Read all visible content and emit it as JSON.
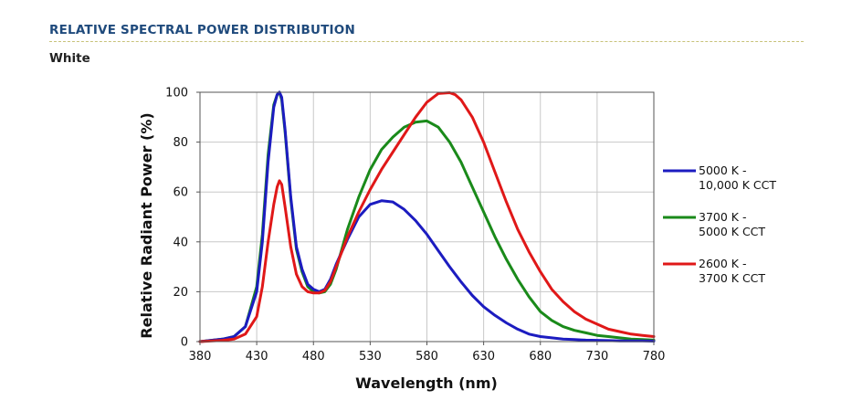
{
  "header": {
    "title": "RELATIVE SPECTRAL POWER DISTRIBUTION",
    "subtitle": "White"
  },
  "chart_data": {
    "type": "line",
    "title": "",
    "xlabel": "Wavelength (nm)",
    "ylabel": "Relative Radiant Power (%)",
    "xlim": [
      380,
      780
    ],
    "ylim": [
      0,
      100
    ],
    "x_ticks": [
      380,
      430,
      480,
      530,
      580,
      630,
      680,
      730,
      780
    ],
    "y_ticks": [
      0,
      20,
      40,
      60,
      80,
      100
    ],
    "grid": true,
    "legend_position": "right",
    "x": [
      380,
      400,
      410,
      420,
      430,
      435,
      440,
      445,
      448,
      450,
      452,
      455,
      460,
      465,
      470,
      475,
      480,
      485,
      490,
      495,
      500,
      510,
      520,
      530,
      540,
      550,
      560,
      570,
      580,
      590,
      600,
      605,
      610,
      620,
      630,
      640,
      650,
      660,
      670,
      680,
      690,
      700,
      710,
      720,
      730,
      740,
      750,
      760,
      770,
      780
    ],
    "series": [
      {
        "name_lines": [
          "5000 K -",
          "10,000 K CCT"
        ],
        "color": "#1c1cc0",
        "values": [
          0,
          1,
          2,
          6,
          20,
          40,
          72,
          94,
          99,
          100,
          98,
          85,
          58,
          38,
          29,
          23,
          21,
          20,
          21,
          25,
          31,
          41,
          50,
          55,
          56.5,
          56,
          53,
          48.5,
          43,
          36.5,
          30,
          27,
          24,
          18.5,
          14,
          10.5,
          7.5,
          5,
          3,
          2,
          1.5,
          1,
          0.8,
          0.6,
          0.5,
          0.4,
          0.3,
          0.3,
          0.3,
          0.2
        ]
      },
      {
        "name_lines": [
          "3700 K -",
          "5000 K CCT"
        ],
        "color": "#1a8a1a",
        "values": [
          0,
          1,
          2,
          6,
          22,
          43,
          75,
          95,
          99,
          100,
          97,
          84,
          57,
          37,
          28,
          22,
          20,
          19.5,
          20,
          23,
          29,
          45,
          58,
          69,
          77,
          82,
          86,
          88,
          88.5,
          86,
          80,
          76,
          72,
          62,
          52,
          42,
          33,
          25,
          18,
          12,
          8.5,
          6,
          4.5,
          3.5,
          2.5,
          2,
          1.5,
          1,
          0.8,
          0.6
        ]
      },
      {
        "name_lines": [
          "2600 K -",
          "3700 K CCT"
        ],
        "color": "#e01818",
        "values": [
          0,
          0.5,
          1,
          3,
          10,
          22,
          40,
          55,
          62,
          64.5,
          63,
          54,
          38,
          27,
          22,
          20,
          19.5,
          19.5,
          20.5,
          24,
          30,
          42,
          52,
          61,
          69,
          76,
          83,
          90,
          96,
          99.5,
          99.8,
          99,
          97,
          90,
          80,
          68,
          56,
          45,
          36,
          28,
          21,
          16,
          12,
          9,
          7,
          5,
          4,
          3,
          2.5,
          2
        ]
      }
    ]
  }
}
